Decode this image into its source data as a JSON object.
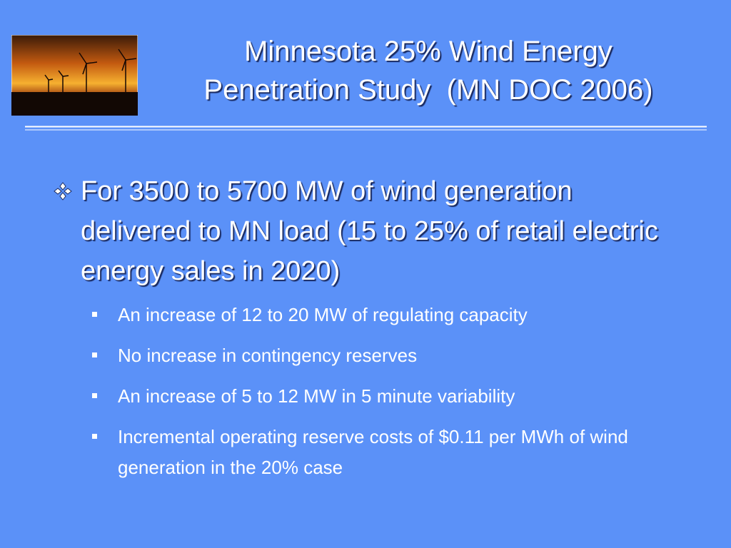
{
  "title": {
    "lines": [
      "Minnesota 25% Wind Energy",
      "Penetration Study  (MN DOC 2006)"
    ]
  },
  "bullet": {
    "text": "For 3500 to 5700 MW of wind generation delivered to MN load (15 to 25% of retail electric energy sales in 2020)",
    "sub_bullets": [
      "An increase of 12 to 20 MW of regulating capacity",
      "No increase in contingency reserves",
      "An increase of 5 to 12 MW in 5 minute variability",
      "Incremental operating reserve costs of $0.11 per MWh of wind generation in the 20% case"
    ]
  }
}
